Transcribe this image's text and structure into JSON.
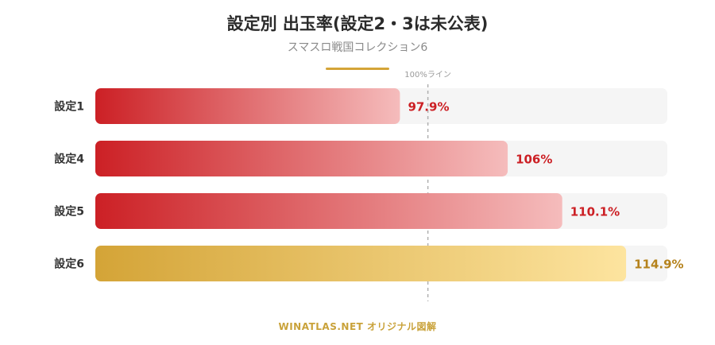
{
  "colors": {
    "red_start": "#cc2025",
    "red_end": "#f5bcbc",
    "gold_start": "#d4a437",
    "gold_end": "#fde49f",
    "track": "#f5f5f5",
    "red_label": "#cc2025",
    "gold_label": "#b5821c",
    "accent_rule": "#d4a437",
    "reference_line": "#b0b0b0"
  },
  "footer": "WINATLAS.NET オリジナル図解",
  "chart_data": {
    "type": "bar",
    "orientation": "horizontal",
    "title": "設定別 出玉率(設定2・3は未公表)",
    "subtitle": "スマスロ戦国コレクション6",
    "categories": [
      "設定1",
      "設定4",
      "設定5",
      "設定6"
    ],
    "values": [
      97.9,
      106,
      110.1,
      114.9
    ],
    "value_labels": [
      "97.9%",
      "106%",
      "110.1%",
      "114.9%"
    ],
    "unit": "%",
    "xlim": [
      75,
      118
    ],
    "reference_line": {
      "value": 100,
      "label": "100%ライン"
    },
    "highlight_category": "設定6",
    "grid": false,
    "legend": "none"
  }
}
